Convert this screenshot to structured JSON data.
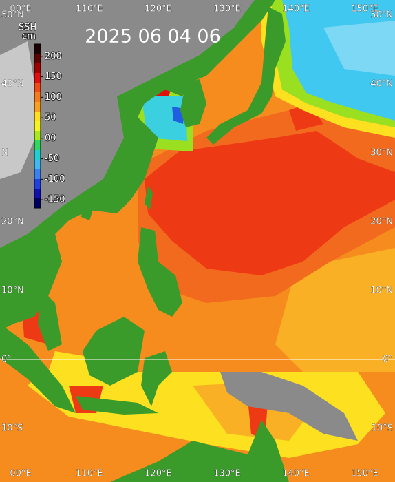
{
  "title": "2025 06 04 06",
  "colorbar": {
    "title": "SSH",
    "unit": "cm",
    "range": [
      -170,
      230
    ],
    "ticks": [
      200,
      150,
      100,
      50,
      {
        "value": 0,
        "label": "00"
      },
      -50,
      -100,
      -150
    ],
    "colors": [
      "#1a0000",
      "#5a0000",
      "#a00000",
      "#e01010",
      "#f04a18",
      "#f57a1e",
      "#f8a020",
      "#fde020",
      "#f4f420",
      "#a8e81c",
      "#30d860",
      "#20d0d0",
      "#40b8f0",
      "#3a80f0",
      "#2040e0",
      "#1010b0",
      "#000060"
    ]
  },
  "lon_labels_top": [
    {
      "value": 100,
      "label": "00°E"
    },
    {
      "value": 110,
      "label": "110°E"
    },
    {
      "value": 120,
      "label": "120°E"
    },
    {
      "value": 130,
      "label": "130°E"
    },
    {
      "value": 140,
      "label": "140°E"
    },
    {
      "value": 150,
      "label": "150°E"
    }
  ],
  "lon_labels_bottom": [
    {
      "value": 100,
      "label": "00°E"
    },
    {
      "value": 110,
      "label": "110°E"
    },
    {
      "value": 120,
      "label": "120°E"
    },
    {
      "value": 130,
      "label": "130°E"
    },
    {
      "value": 140,
      "label": "140°E"
    },
    {
      "value": 150,
      "label": "150°E"
    }
  ],
  "lat_labels_left": [
    {
      "value": 50,
      "label": "50°N"
    },
    {
      "value": 40,
      "label": "40°N"
    },
    {
      "value": 30,
      "label": "N"
    },
    {
      "value": 20,
      "label": "20°N"
    },
    {
      "value": 10,
      "label": "10°N"
    },
    {
      "value": 0,
      "label": "0°"
    },
    {
      "value": -10,
      "label": "10°S"
    }
  ],
  "lat_labels_right": [
    {
      "value": 50,
      "label": "50°N"
    },
    {
      "value": 40,
      "label": "40°N"
    },
    {
      "value": 30,
      "label": "30°N"
    },
    {
      "value": 20,
      "label": "20°N"
    },
    {
      "value": 10,
      "label": "10°N"
    },
    {
      "value": 0,
      "label": "0°"
    },
    {
      "value": -10,
      "label": "10°S"
    }
  ]
}
